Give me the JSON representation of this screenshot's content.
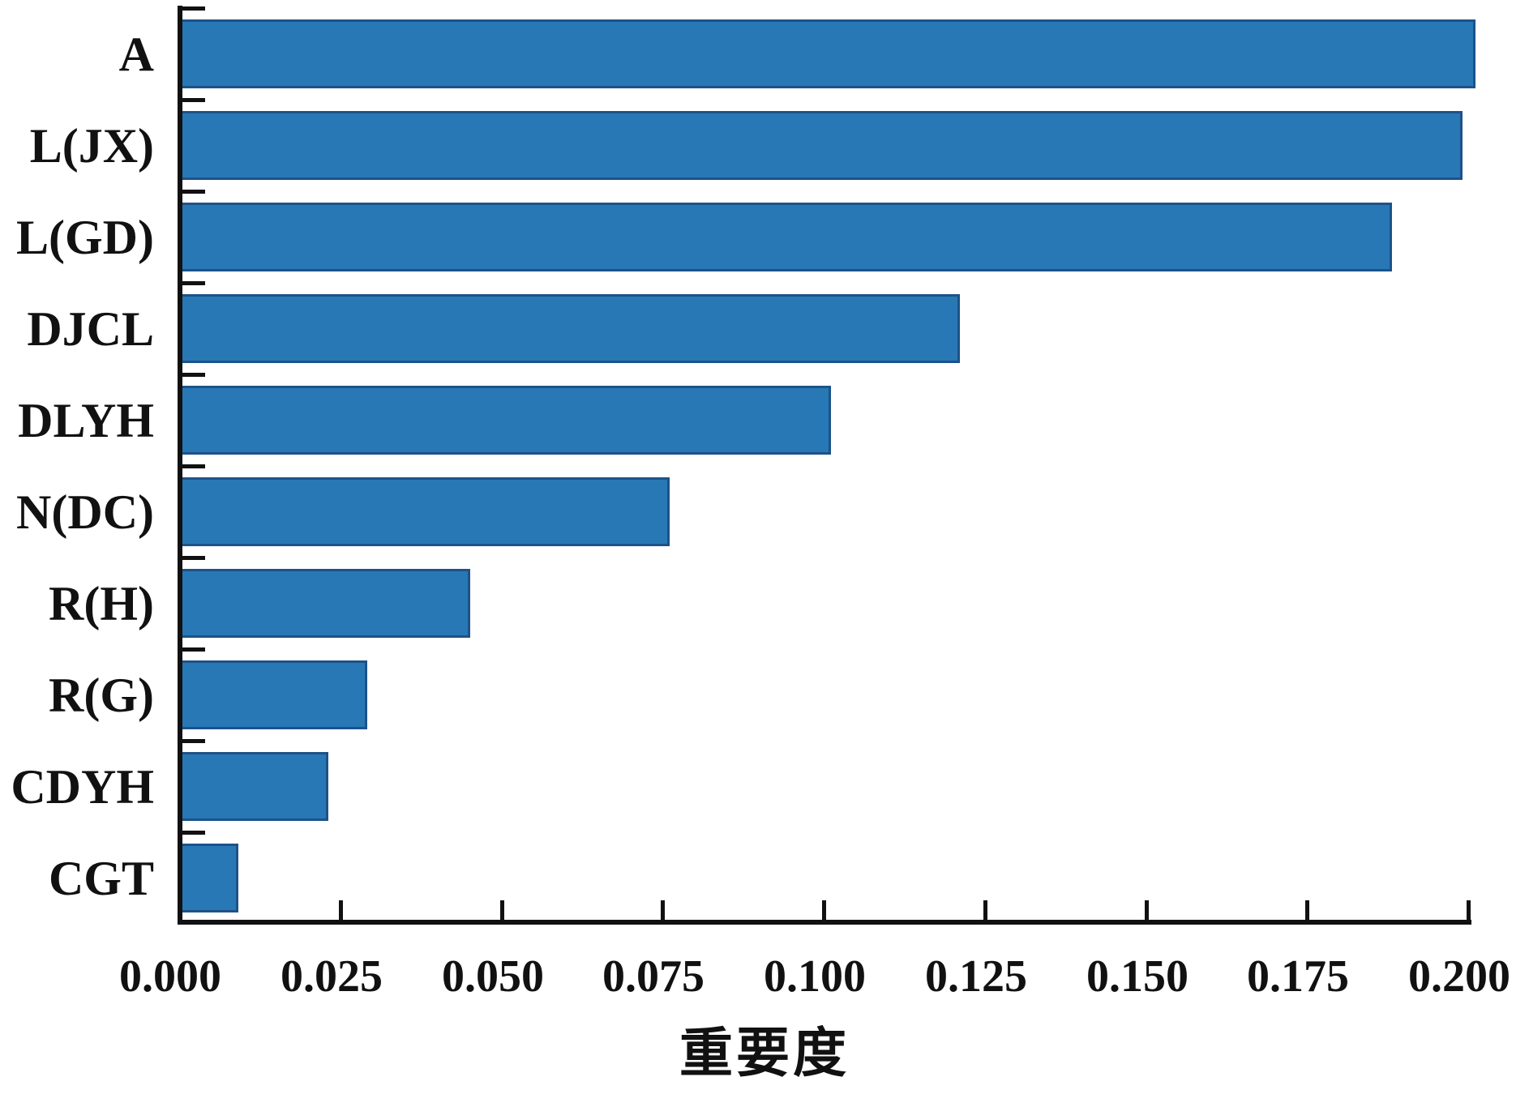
{
  "chart_data": {
    "type": "bar",
    "orientation": "horizontal",
    "title": "",
    "xlabel": "重要度",
    "ylabel": "",
    "categories": [
      "A",
      "L(JX)",
      "L(GD)",
      "DJCL",
      "DLYH",
      "N(DC)",
      "R(H)",
      "R(G)",
      "CDYH",
      "CGT"
    ],
    "values": [
      0.201,
      0.199,
      0.188,
      0.121,
      0.101,
      0.076,
      0.045,
      0.029,
      0.023,
      0.009
    ],
    "xticks": [
      "0.000",
      "0.025",
      "0.050",
      "0.075",
      "0.100",
      "0.125",
      "0.150",
      "0.175",
      "0.200"
    ],
    "xtick_values": [
      0,
      0.025,
      0.05,
      0.075,
      0.1,
      0.125,
      0.15,
      0.175,
      0.2
    ],
    "xlim": [
      0,
      0.2025
    ],
    "grid": false,
    "legend_position": "none",
    "tick_direction": "in",
    "colors": {
      "bar_fill": "#2878b6",
      "bar_edge": "#1d5288",
      "axis": "#111111",
      "text": "#111111",
      "background": "#ffffff"
    }
  }
}
